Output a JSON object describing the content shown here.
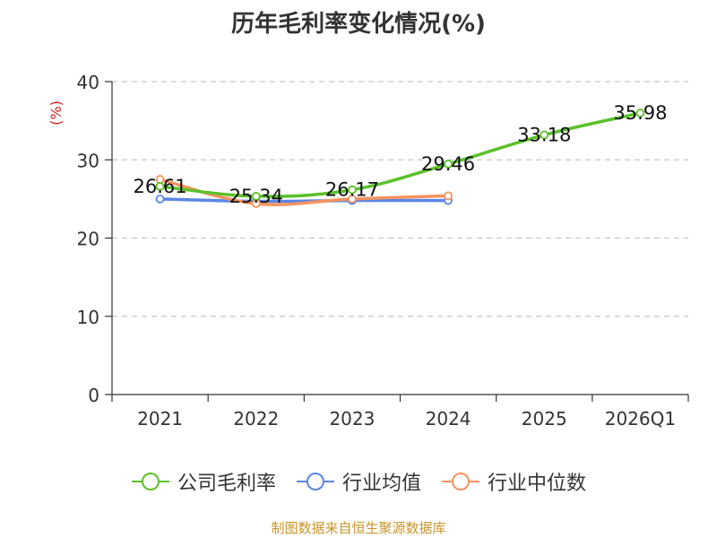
{
  "chart_data": {
    "type": "line",
    "title": "历年毛利率变化情况(%)",
    "ylabel": "(%)",
    "ylim": [
      0,
      40
    ],
    "yticks": [
      0,
      10,
      20,
      30,
      40
    ],
    "grid": true,
    "legend_position": "bottom",
    "categories": [
      "2021",
      "2022",
      "2023",
      "2024",
      "2025",
      "2026Q1"
    ],
    "series": [
      {
        "name": "公司毛利率",
        "color": "#5cc12b",
        "values": [
          26.61,
          25.34,
          26.17,
          29.46,
          33.18,
          35.98
        ],
        "labels": [
          "26.61",
          "25.34",
          "26.17",
          "29.46",
          "33.18",
          "35.98"
        ]
      },
      {
        "name": "行业均值",
        "color": "#5b86e5",
        "values": [
          25.0,
          24.7,
          24.8,
          24.8,
          null,
          null
        ]
      },
      {
        "name": "行业中位数",
        "color": "#f5925e",
        "values": [
          27.5,
          24.4,
          25.0,
          25.4,
          null,
          null
        ]
      }
    ]
  },
  "footer": {
    "source_text": "制图数据来自恒生聚源数据库",
    "color": "#c8942a"
  },
  "axis_color": "#333333",
  "ylabel_color": "#d42020",
  "grid_color": "#c8c8c8"
}
